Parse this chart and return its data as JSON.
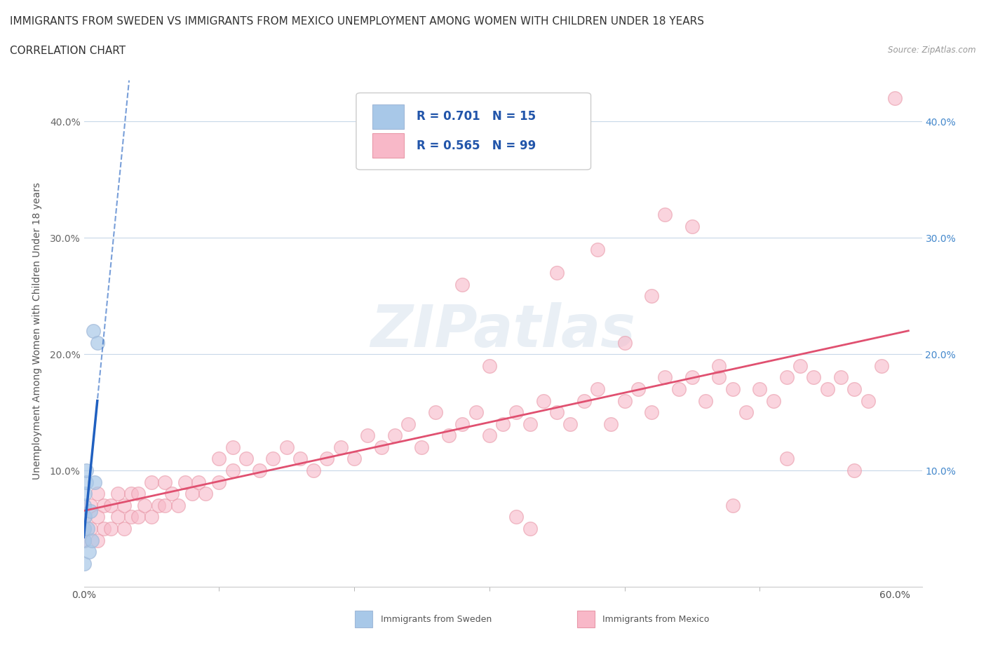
{
  "title_line1": "IMMIGRANTS FROM SWEDEN VS IMMIGRANTS FROM MEXICO UNEMPLOYMENT AMONG WOMEN WITH CHILDREN UNDER 18 YEARS",
  "title_line2": "CORRELATION CHART",
  "source": "Source: ZipAtlas.com",
  "ylabel": "Unemployment Among Women with Children Under 18 years",
  "xlim": [
    0.0,
    0.62
  ],
  "ylim": [
    0.0,
    0.44
  ],
  "xticks_pos": [
    0.0,
    0.6
  ],
  "xtick_labels": [
    "0.0%",
    "60.0%"
  ],
  "yticks": [
    0.0,
    0.1,
    0.2,
    0.3,
    0.4
  ],
  "yticklabels_left": [
    "",
    "10.0%",
    "20.0%",
    "30.0%",
    "40.0%"
  ],
  "yticklabels_right": [
    "",
    "10.0%",
    "20.0%",
    "30.0%",
    "40.0%"
  ],
  "sweden_color": "#a8c8e8",
  "sweden_edge_color": "#a0b8d8",
  "mexico_color": "#f8b8c8",
  "mexico_edge_color": "#e898a8",
  "sweden_line_color": "#2060c0",
  "mexico_line_color": "#e05070",
  "grid_color": "#c8d8e8",
  "background_color": "#ffffff",
  "legend_R_sweden": "0.701",
  "legend_N_sweden": "15",
  "legend_R_mexico": "0.565",
  "legend_N_mexico": "99",
  "title_fontsize": 11,
  "axis_label_fontsize": 10,
  "tick_fontsize": 10,
  "watermark_text": "ZIPatlas",
  "legend_text_color": "#2255aa",
  "right_tick_color": "#4488cc",
  "sweden_x": [
    0.0,
    0.0,
    0.0,
    0.0,
    0.001,
    0.001,
    0.002,
    0.002,
    0.003,
    0.004,
    0.005,
    0.006,
    0.007,
    0.008,
    0.01
  ],
  "sweden_y": [
    0.02,
    0.04,
    0.05,
    0.07,
    0.06,
    0.08,
    0.09,
    0.1,
    0.05,
    0.03,
    0.065,
    0.04,
    0.22,
    0.09,
    0.21
  ],
  "mexico_x": [
    0.0,
    0.0,
    0.0,
    0.005,
    0.005,
    0.01,
    0.01,
    0.01,
    0.015,
    0.015,
    0.02,
    0.02,
    0.025,
    0.025,
    0.03,
    0.03,
    0.035,
    0.035,
    0.04,
    0.04,
    0.045,
    0.05,
    0.05,
    0.055,
    0.06,
    0.06,
    0.065,
    0.07,
    0.075,
    0.08,
    0.085,
    0.09,
    0.1,
    0.1,
    0.11,
    0.11,
    0.12,
    0.13,
    0.14,
    0.15,
    0.16,
    0.17,
    0.18,
    0.19,
    0.2,
    0.21,
    0.22,
    0.23,
    0.24,
    0.25,
    0.26,
    0.27,
    0.28,
    0.29,
    0.3,
    0.31,
    0.32,
    0.33,
    0.34,
    0.35,
    0.36,
    0.37,
    0.38,
    0.39,
    0.4,
    0.41,
    0.42,
    0.43,
    0.44,
    0.45,
    0.46,
    0.47,
    0.48,
    0.49,
    0.5,
    0.51,
    0.52,
    0.53,
    0.54,
    0.55,
    0.56,
    0.57,
    0.58,
    0.59,
    0.6,
    0.35,
    0.4,
    0.45,
    0.3,
    0.32,
    0.38,
    0.42,
    0.47,
    0.52,
    0.57,
    0.28,
    0.33,
    0.43,
    0.48
  ],
  "mexico_y": [
    0.04,
    0.05,
    0.06,
    0.05,
    0.07,
    0.04,
    0.06,
    0.08,
    0.05,
    0.07,
    0.05,
    0.07,
    0.06,
    0.08,
    0.05,
    0.07,
    0.06,
    0.08,
    0.06,
    0.08,
    0.07,
    0.06,
    0.09,
    0.07,
    0.07,
    0.09,
    0.08,
    0.07,
    0.09,
    0.08,
    0.09,
    0.08,
    0.09,
    0.11,
    0.1,
    0.12,
    0.11,
    0.1,
    0.11,
    0.12,
    0.11,
    0.1,
    0.11,
    0.12,
    0.11,
    0.13,
    0.12,
    0.13,
    0.14,
    0.12,
    0.15,
    0.13,
    0.14,
    0.15,
    0.13,
    0.14,
    0.15,
    0.14,
    0.16,
    0.15,
    0.14,
    0.16,
    0.17,
    0.14,
    0.16,
    0.17,
    0.15,
    0.18,
    0.17,
    0.18,
    0.16,
    0.18,
    0.17,
    0.15,
    0.17,
    0.16,
    0.18,
    0.19,
    0.18,
    0.17,
    0.18,
    0.1,
    0.16,
    0.19,
    0.42,
    0.27,
    0.21,
    0.31,
    0.19,
    0.06,
    0.29,
    0.25,
    0.19,
    0.11,
    0.17,
    0.26,
    0.05,
    0.32,
    0.07
  ]
}
